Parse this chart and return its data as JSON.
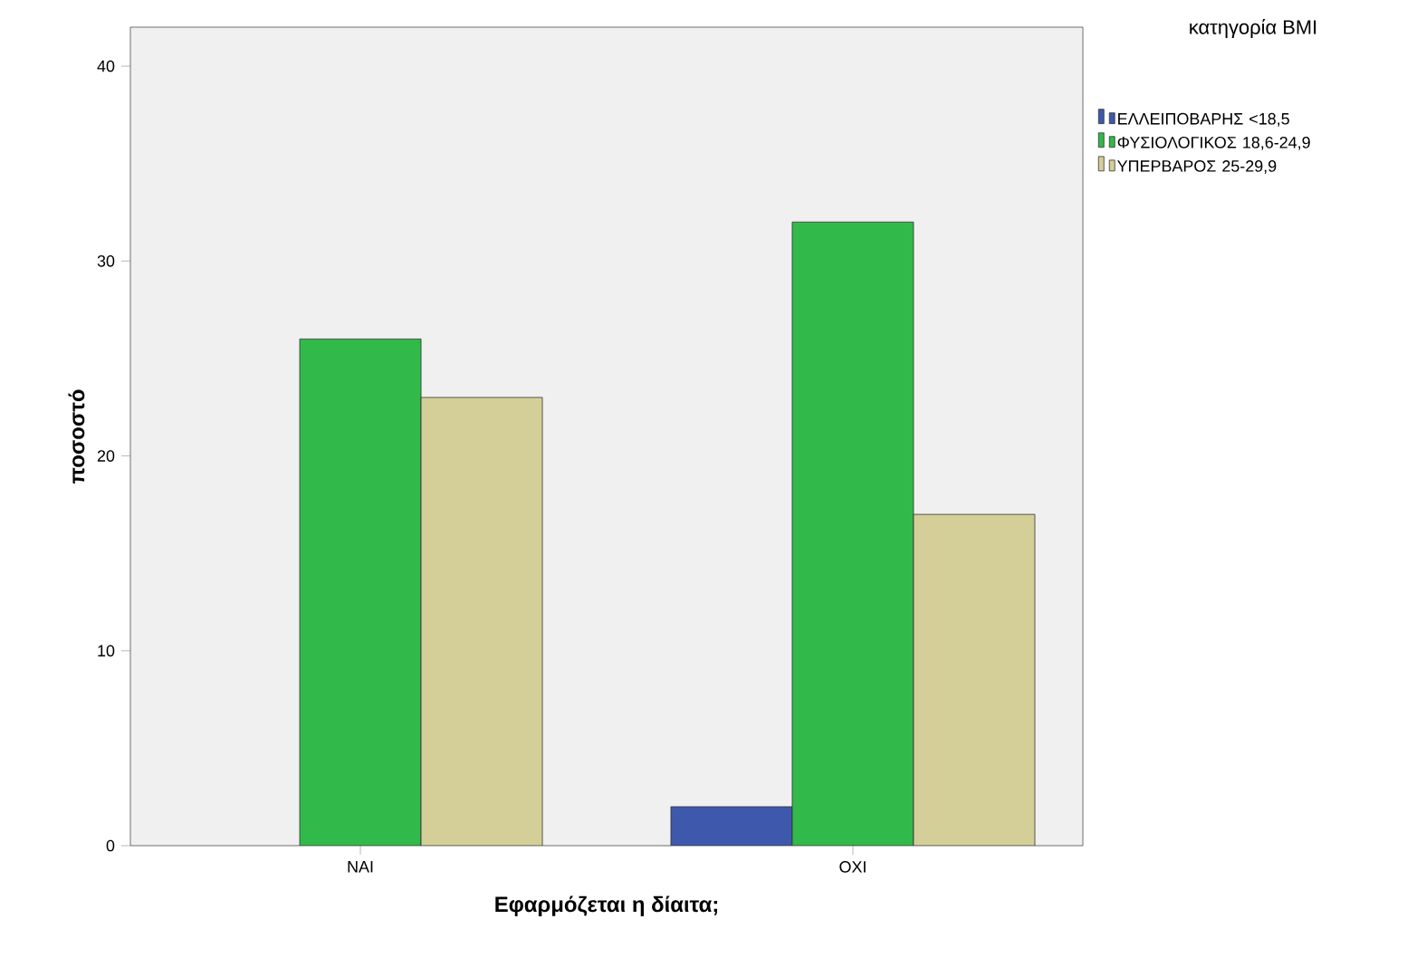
{
  "chart_data": {
    "type": "bar",
    "xlabel": "Εφαρμόζεται η δίαιτα;",
    "ylabel": "ποσοστό",
    "legend_title": "κατηγορία BMI",
    "categories": [
      "ΝΑΙ",
      "ΟΧΙ"
    ],
    "series": [
      {
        "name": "ΕΛΛΕΙΠΟΒΑΡΗΣ <18,5",
        "color": "#3e58ac",
        "values": [
          null,
          2
        ]
      },
      {
        "name": "ΦΥΣΙΟΛΟΓΙΚΟΣ 18,6-24,9",
        "color": "#31b94a",
        "values": [
          26,
          32
        ]
      },
      {
        "name": "ΥΠΕΡΒΑΡΟΣ 25-29,9",
        "color": "#d4cf98",
        "values": [
          23,
          17
        ]
      }
    ],
    "ylim": [
      0,
      42
    ],
    "yticks": [
      0,
      10,
      20,
      30,
      40
    ],
    "grid": false,
    "legend": "right"
  }
}
